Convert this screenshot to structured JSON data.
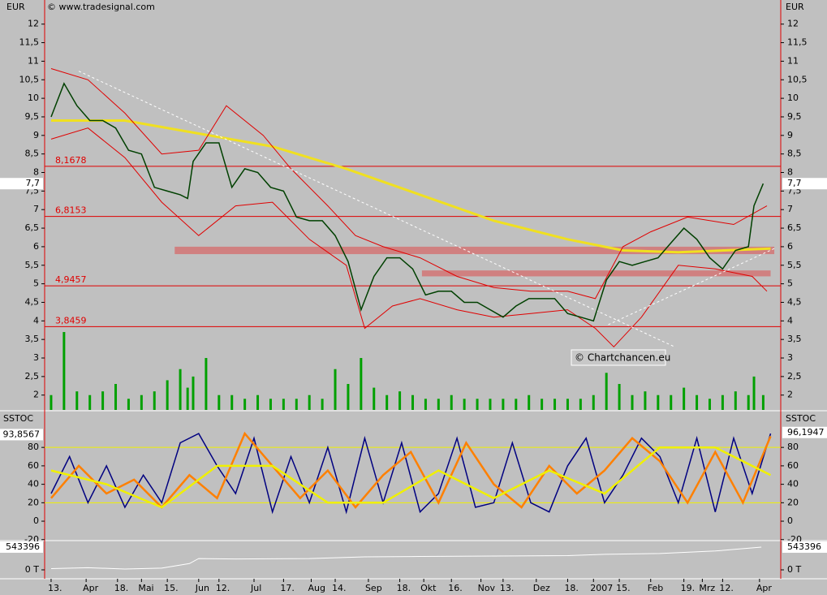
{
  "chart_data": [
    {
      "type": "line",
      "axis_label": "EUR",
      "credit": "© www.tradesignal.com",
      "watermark": "© Chartchancen.eu",
      "xlim": [
        -3.5,
        395.5
      ],
      "ylim": [
        1.6,
        12.65
      ],
      "yticks": [
        2,
        {
          "value": 2.5,
          "label": "2,5"
        },
        3,
        {
          "value": 3.5,
          "label": "3,5"
        },
        4,
        {
          "value": 4.5,
          "label": "4,5"
        },
        5,
        {
          "value": 5.5,
          "label": "5,5"
        },
        6,
        {
          "value": 6.5,
          "label": "6,5"
        },
        7,
        {
          "value": 7.5,
          "label": "7,5"
        },
        8,
        {
          "value": 8.5,
          "label": "8,5"
        },
        9,
        {
          "value": 9.5,
          "label": "9,5"
        },
        10,
        {
          "value": 10.5,
          "label": "10,5"
        },
        11,
        {
          "value": 11.5,
          "label": "11,5"
        },
        12
      ],
      "tags": [
        {
          "value": 7.7,
          "label": "7,7",
          "side": "left"
        },
        {
          "value": 7.7,
          "label": "7,7",
          "side": "right"
        }
      ],
      "levels": [
        {
          "value": 8.1678,
          "label": "8,1678"
        },
        {
          "value": 6.8153,
          "label": "6,8153"
        },
        {
          "value": 4.9457,
          "label": "4,9457"
        },
        {
          "value": 3.8459,
          "label": "3,8459"
        }
      ],
      "level_color": "#e00000",
      "zones": [
        {
          "from": 5.8,
          "to": 6.0,
          "x": [
            67,
            392
          ]
        },
        {
          "from": 5.2,
          "to": 5.36,
          "x": [
            201,
            390
          ]
        }
      ],
      "zone_color": "#d08080",
      "x": [
        0,
        7,
        14,
        21,
        28,
        35,
        42,
        49,
        56,
        63,
        70,
        74,
        77,
        84,
        91,
        98,
        105,
        112,
        119,
        126,
        133,
        140,
        147,
        154,
        161,
        168,
        175,
        182,
        189,
        196,
        203,
        210,
        217,
        224,
        231,
        238,
        245,
        252,
        259,
        266,
        273,
        280,
        287,
        294,
        301,
        308,
        315,
        322,
        329,
        336,
        343,
        350,
        357,
        364,
        371,
        378,
        381,
        386
      ],
      "values": [
        9.5,
        10.4,
        9.8,
        9.4,
        9.4,
        9.2,
        8.6,
        8.5,
        7.6,
        7.5,
        7.4,
        7.3,
        8.3,
        8.8,
        8.8,
        7.6,
        8.1,
        8.0,
        7.6,
        7.5,
        6.8,
        6.7,
        6.7,
        6.3,
        5.6,
        4.3,
        5.2,
        5.7,
        5.7,
        5.4,
        4.7,
        4.8,
        4.8,
        4.5,
        4.5,
        4.3,
        4.1,
        4.4,
        4.6,
        4.6,
        4.6,
        4.2,
        4.1,
        4.0,
        5.1,
        5.6,
        5.5,
        5.6,
        5.7,
        6.1,
        6.5,
        6.2,
        5.7,
        5.4,
        5.9,
        6.0,
        7.1,
        7.7
      ],
      "color": "#004000",
      "volume": [
        2.0,
        3.7,
        2.1,
        2.0,
        2.1,
        2.3,
        1.9,
        2.0,
        2.1,
        2.4,
        2.7,
        2.2,
        2.5,
        3.0,
        2.0,
        2.0,
        1.9,
        2.0,
        1.9,
        1.9,
        1.9,
        2.0,
        1.9,
        2.7,
        2.3,
        3.0,
        2.2,
        2.0,
        2.1,
        2.0,
        1.9,
        1.9,
        2.0,
        1.9,
        1.9,
        1.9,
        1.9,
        1.9,
        2.0,
        1.9,
        1.9,
        1.9,
        1.9,
        2.0,
        2.6,
        2.3,
        2.0,
        2.1,
        2.0,
        2.0,
        2.2,
        2.0,
        1.9,
        2.0,
        2.1,
        2.0,
        2.5,
        2.0
      ],
      "volume_color": "#00a000",
      "series": [
        {
          "color": "#f0e020",
          "width": 3,
          "x": [
            0,
            40,
            80,
            120,
            160,
            200,
            240,
            280,
            310,
            340,
            390
          ],
          "values": [
            9.4,
            9.4,
            9.05,
            8.7,
            8.1,
            7.4,
            6.7,
            6.2,
            5.9,
            5.85,
            5.95
          ]
        },
        {
          "color": "#e00000",
          "width": 1,
          "x": [
            0,
            20,
            40,
            60,
            80,
            95,
            115,
            130,
            150,
            165,
            180,
            200,
            220,
            240,
            260,
            280,
            295,
            310,
            325,
            345,
            370,
            388
          ],
          "values": [
            10.8,
            10.5,
            9.6,
            8.5,
            8.6,
            9.8,
            9.0,
            8.1,
            7.1,
            6.3,
            6.0,
            5.7,
            5.2,
            4.9,
            4.8,
            4.8,
            4.6,
            6.0,
            6.4,
            6.8,
            6.6,
            7.1
          ]
        },
        {
          "color": "#e00000",
          "width": 1,
          "x": [
            0,
            20,
            40,
            60,
            80,
            100,
            120,
            140,
            160,
            170,
            185,
            200,
            220,
            240,
            260,
            280,
            295,
            305,
            320,
            340,
            360,
            380,
            388
          ],
          "values": [
            8.9,
            9.2,
            8.4,
            7.2,
            6.3,
            7.1,
            7.2,
            6.2,
            5.5,
            3.8,
            4.4,
            4.6,
            4.3,
            4.1,
            4.2,
            4.3,
            3.8,
            3.3,
            4.1,
            5.5,
            5.4,
            5.2,
            4.8
          ]
        },
        {
          "color": "#ffffff",
          "width": 1,
          "dashed": true,
          "x": [
            15,
            338
          ],
          "values": [
            10.73,
            3.3
          ]
        },
        {
          "color": "#ffffff",
          "width": 1,
          "dashed": true,
          "x": [
            302,
            392
          ],
          "values": [
            3.9,
            5.95
          ]
        }
      ]
    },
    {
      "type": "line",
      "axis_label": "SSTOC",
      "xlim": [
        -3.5,
        395.5
      ],
      "ylim": [
        -20.2,
        118
      ],
      "yticks": [
        -20,
        0,
        20,
        40,
        60,
        80
      ],
      "bands": [
        20,
        80
      ],
      "band_color": "#f0f000",
      "tags": [
        {
          "value": 93.8567,
          "label": "93,8567",
          "side": "left"
        },
        {
          "value": 96.1947,
          "label": "96,1947",
          "side": "right"
        }
      ],
      "series": [
        {
          "color": "#000080",
          "width": 1.5,
          "x": [
            0,
            10,
            20,
            30,
            40,
            50,
            60,
            70,
            80,
            90,
            100,
            110,
            120,
            130,
            140,
            150,
            160,
            170,
            180,
            190,
            200,
            210,
            220,
            230,
            240,
            250,
            260,
            270,
            280,
            290,
            300,
            310,
            320,
            330,
            340,
            350,
            360,
            370,
            380,
            390
          ],
          "values": [
            30,
            70,
            20,
            60,
            15,
            50,
            20,
            85,
            95,
            60,
            30,
            90,
            10,
            70,
            20,
            80,
            10,
            90,
            20,
            85,
            10,
            30,
            90,
            15,
            20,
            85,
            20,
            10,
            60,
            90,
            20,
            50,
            90,
            70,
            20,
            90,
            10,
            90,
            30,
            95
          ]
        },
        {
          "color": "#ff8000",
          "width": 2.5,
          "x": [
            0,
            15,
            30,
            45,
            60,
            75,
            90,
            105,
            120,
            135,
            150,
            165,
            180,
            195,
            210,
            225,
            240,
            255,
            270,
            285,
            300,
            315,
            330,
            345,
            360,
            375,
            390
          ],
          "values": [
            25,
            60,
            30,
            45,
            15,
            50,
            25,
            95,
            60,
            25,
            55,
            15,
            50,
            75,
            20,
            85,
            40,
            15,
            60,
            30,
            55,
            90,
            65,
            20,
            75,
            20,
            92
          ]
        },
        {
          "color": "#f0f000",
          "width": 2.5,
          "x": [
            0,
            30,
            60,
            90,
            120,
            150,
            180,
            210,
            240,
            270,
            300,
            330,
            360,
            390
          ],
          "values": [
            55,
            40,
            15,
            60,
            60,
            20,
            20,
            55,
            25,
            55,
            30,
            80,
            80,
            50
          ]
        }
      ]
    },
    {
      "type": "line",
      "xlim": [
        -3.5,
        395.5
      ],
      "ylim": [
        -194000,
        679000
      ],
      "yticks": [
        {
          "value": 0,
          "label": "0 T"
        }
      ],
      "tags": [
        {
          "value": 543396,
          "label": "543396",
          "side": "left"
        },
        {
          "value": 543396,
          "label": "543396",
          "side": "right"
        }
      ],
      "xticks": [
        {
          "value": 0,
          "label": "13."
        },
        {
          "value": 19,
          "label": "Apr"
        },
        {
          "value": 36,
          "label": "18."
        },
        {
          "value": 49,
          "label": "Mai"
        },
        {
          "value": 63,
          "label": "15."
        },
        {
          "value": 80,
          "label": "Jun"
        },
        {
          "value": 91,
          "label": "12."
        },
        {
          "value": 110,
          "label": "Jul"
        },
        {
          "value": 126,
          "label": "17."
        },
        {
          "value": 141,
          "label": "Aug"
        },
        {
          "value": 154,
          "label": "14."
        },
        {
          "value": 172,
          "label": "Sep"
        },
        {
          "value": 189,
          "label": "18."
        },
        {
          "value": 202,
          "label": "Okt"
        },
        {
          "value": 217,
          "label": "16."
        },
        {
          "value": 233,
          "label": "Nov"
        },
        {
          "value": 245,
          "label": "13."
        },
        {
          "value": 263,
          "label": "Dez"
        },
        {
          "value": 280,
          "label": "18."
        },
        {
          "value": 294,
          "label": "2007"
        },
        {
          "value": 308,
          "label": "15."
        },
        {
          "value": 325,
          "label": "Feb"
        },
        {
          "value": 343,
          "label": "19."
        },
        {
          "value": 353,
          "label": "Mrz"
        },
        {
          "value": 364,
          "label": "12."
        },
        {
          "value": 384,
          "label": "Apr"
        }
      ],
      "series": [
        {
          "color": "#ffffff",
          "width": 1,
          "x": [
            0,
            20,
            40,
            60,
            75,
            80,
            100,
            140,
            170,
            200,
            240,
            280,
            300,
            330,
            360,
            385
          ],
          "values": [
            30000,
            50000,
            20000,
            40000,
            150000,
            270000,
            260000,
            270000,
            310000,
            320000,
            330000,
            340000,
            370000,
            390000,
            450000,
            543396
          ]
        }
      ]
    }
  ]
}
